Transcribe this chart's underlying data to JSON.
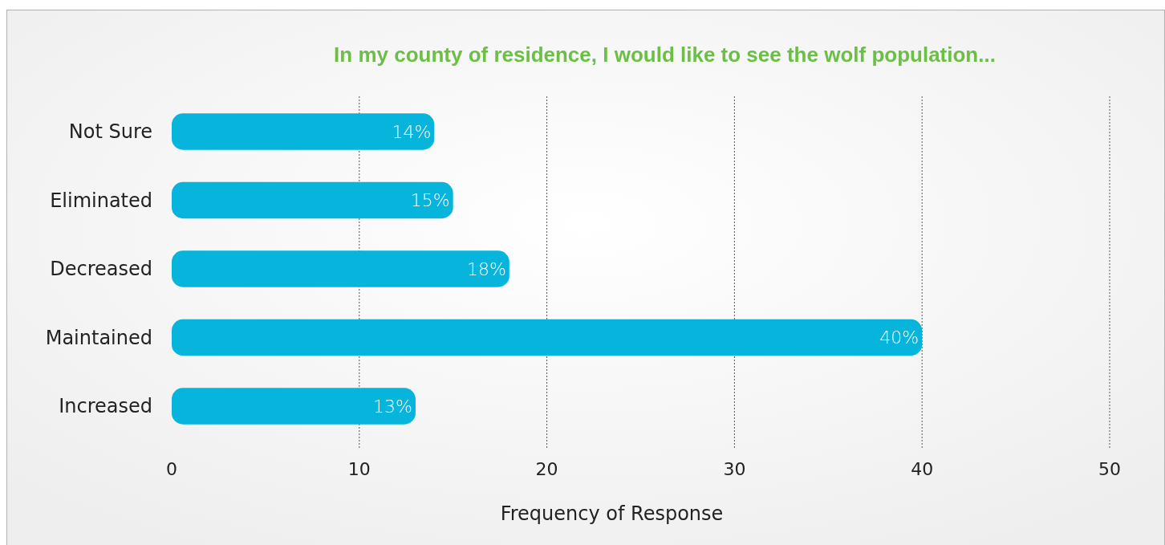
{
  "chart_data": {
    "type": "bar",
    "orientation": "horizontal",
    "title": "In my county of residence, I would like to see the wolf population...",
    "xlabel": "Frequency of Response",
    "categories": [
      "Not Sure",
      "Eliminated",
      "Decreased",
      "Maintained",
      "Increased"
    ],
    "values": [
      14,
      15,
      18,
      40,
      13
    ],
    "value_labels": [
      "14%",
      "15%",
      "18%",
      "40%",
      "13%"
    ],
    "color": "#06b4dc",
    "xlim": [
      0,
      50
    ],
    "xticks": [
      0,
      10,
      20,
      30,
      40,
      50
    ],
    "grid": "x"
  }
}
